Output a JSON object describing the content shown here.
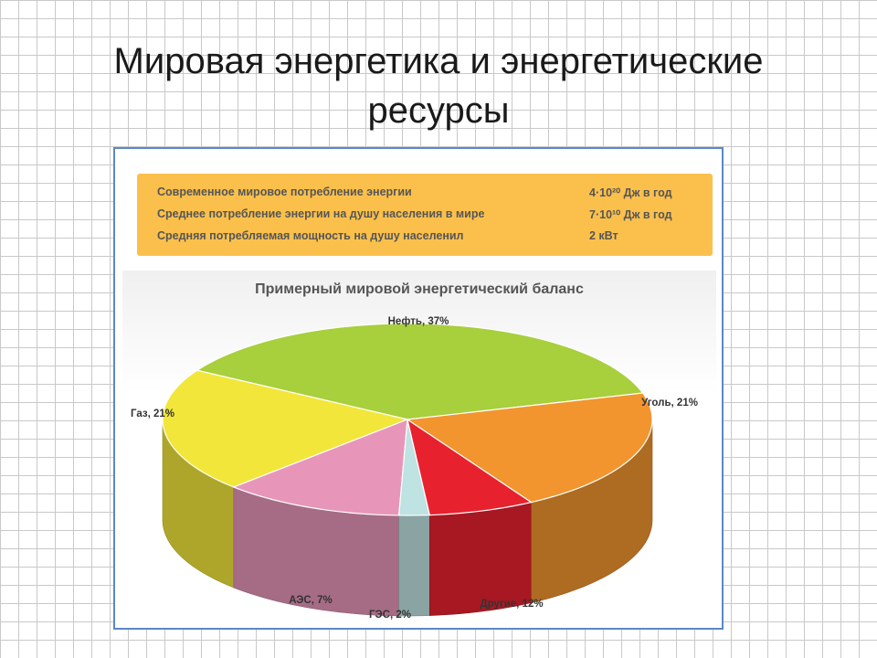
{
  "slide": {
    "title_line1": "Мировая энергетика и энергетические",
    "title_line2": "ресурсы"
  },
  "info_box": {
    "rows": [
      {
        "label": "Современное мировое потребление энергии",
        "value": "4·10²⁰ Дж в год"
      },
      {
        "label": "Среднее потребление энергии на душу населения в  мире",
        "value": "7·10¹⁰ Дж в год"
      },
      {
        "label": "Средняя потребляемая мощность на душу населенил",
        "value": "2 кВт"
      }
    ]
  },
  "chart_data": {
    "type": "pie",
    "title": "Примерный мировой энергетический баланс",
    "slices": [
      {
        "name": "Нефть",
        "label": "Нефть, 37%",
        "value": 37,
        "color": "#a8cf3c"
      },
      {
        "name": "Уголь",
        "label": "Уголь, 21%",
        "value": 21,
        "color": "#f2e63a"
      },
      {
        "name": "Другие",
        "label": "Другие, 12%",
        "value": 12,
        "color": "#e796b9"
      },
      {
        "name": "ГЭС",
        "label": "ГЭС, 2%",
        "value": 2,
        "color": "#bfe2e2"
      },
      {
        "name": "АЭС",
        "label": "АЭС, 7%",
        "value": 7,
        "color": "#e8212f"
      },
      {
        "name": "Газ",
        "label": "Газ, 21%",
        "value": 21,
        "color": "#f2952f"
      }
    ]
  }
}
